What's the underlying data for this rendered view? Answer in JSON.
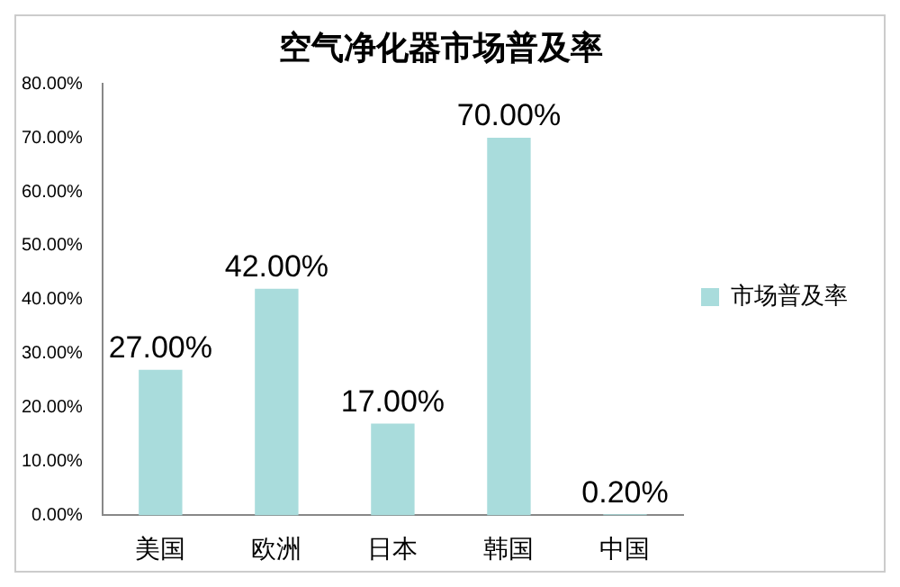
{
  "chart_data": {
    "type": "bar",
    "title": "空气净化器市场普及率",
    "categories": [
      "美国",
      "欧洲",
      "日本",
      "韩国",
      "中国"
    ],
    "series": [
      {
        "name": "市场普及率",
        "color": "#a9dcdc",
        "values": [
          27,
          42,
          17,
          70,
          0.2
        ],
        "value_labels": [
          "27.00%",
          "42.00%",
          "17.00%",
          "70.00%",
          "0.20%"
        ]
      }
    ],
    "ylim": [
      0,
      80
    ],
    "yticks": [
      {
        "value": 0,
        "label": "0.00%"
      },
      {
        "value": 10,
        "label": "10.00%"
      },
      {
        "value": 20,
        "label": "20.00%"
      },
      {
        "value": 30,
        "label": "30.00%"
      },
      {
        "value": 40,
        "label": "40.00%"
      },
      {
        "value": 50,
        "label": "50.00%"
      },
      {
        "value": 60,
        "label": "60.00%"
      },
      {
        "value": 70,
        "label": "70.00%"
      },
      {
        "value": 80,
        "label": "80.00%"
      }
    ],
    "legend": "right"
  }
}
